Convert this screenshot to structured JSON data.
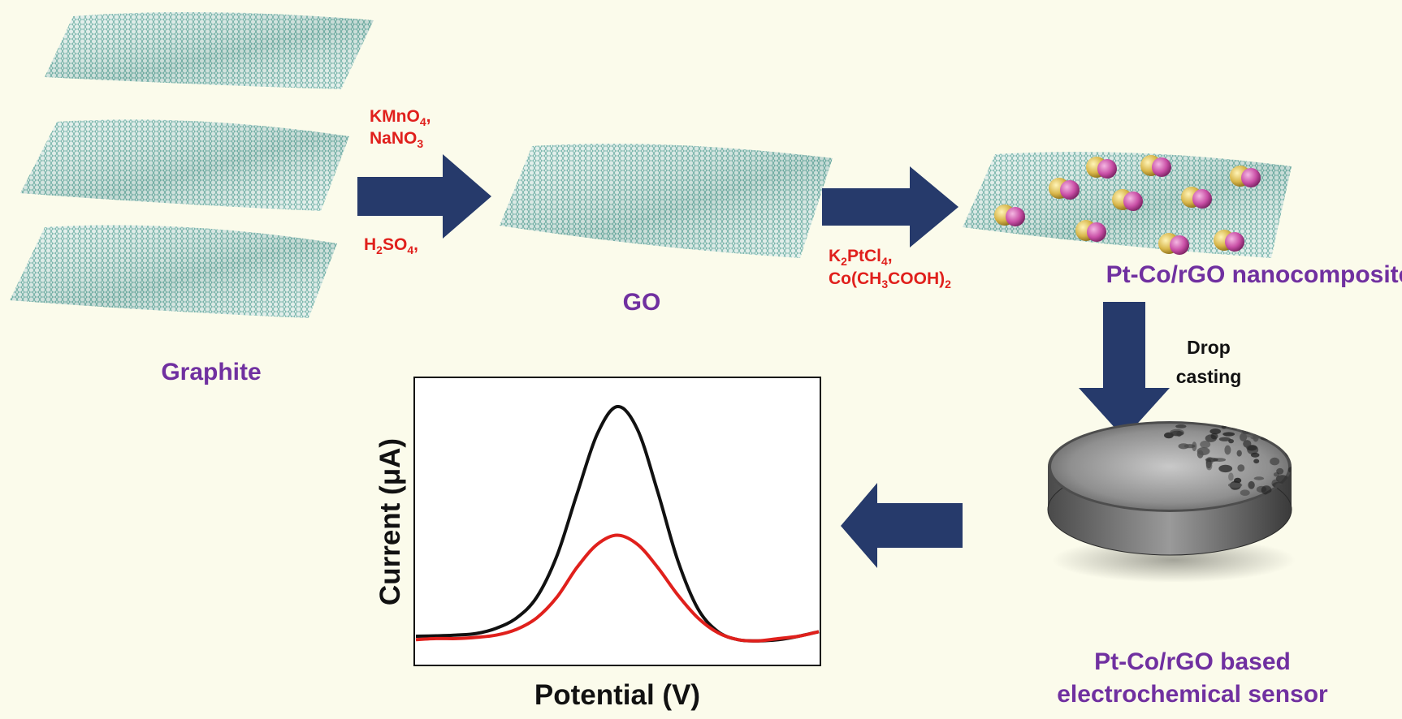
{
  "labels": {
    "graphite": "Graphite",
    "go": "GO",
    "nanocomposite": "Pt-Co/rGO nanocomposite",
    "drop_casting_line1": "Drop",
    "drop_casting_line2": "casting",
    "sensor_line1": "Pt-Co/rGO based",
    "sensor_line2": "electrochemical sensor"
  },
  "reagents_step1": {
    "top_line1": "KMnO4,",
    "top_line2": "NaNO3",
    "bottom": "H2SO4,"
  },
  "reagents_step2": {
    "line1": "K2PtCl4,",
    "line2": "Co(CH3COOH)2"
  },
  "colors": {
    "label": "#7030a0",
    "reagent": "#e0201c",
    "arrow": "#263a6b",
    "sheet": "#6fb3a8",
    "pt_particle": "#c94fa6",
    "co_particle": "#d8b64a"
  },
  "chart_data": {
    "type": "line",
    "title": "",
    "xlabel": "Potential (V)",
    "ylabel": "Current (μA)",
    "series": [
      {
        "color": "#111111",
        "x": [
          0.0,
          0.05,
          0.1,
          0.15,
          0.2,
          0.25,
          0.3,
          0.35,
          0.4,
          0.45,
          0.5,
          0.55,
          0.6,
          0.65,
          0.7,
          0.75,
          0.8,
          0.85,
          0.9,
          0.95,
          1.0
        ],
        "values": [
          0.0,
          0.2,
          0.5,
          1.2,
          3.5,
          8.0,
          17.0,
          35.0,
          62.0,
          88.0,
          100.0,
          90.0,
          63.0,
          33.0,
          12.0,
          2.0,
          -1.5,
          -2.0,
          -1.5,
          0.0,
          2.0
        ]
      },
      {
        "color": "#e0201c",
        "x": [
          0.0,
          0.05,
          0.1,
          0.15,
          0.2,
          0.25,
          0.3,
          0.35,
          0.4,
          0.45,
          0.5,
          0.55,
          0.6,
          0.65,
          0.7,
          0.75,
          0.8,
          0.85,
          0.9,
          0.95,
          1.0
        ],
        "values": [
          -1.5,
          -1.0,
          -1.0,
          -0.5,
          0.5,
          3.0,
          8.0,
          17.0,
          30.0,
          40.0,
          44.0,
          40.0,
          30.0,
          18.0,
          8.0,
          1.5,
          -1.5,
          -2.0,
          -1.0,
          0.0,
          2.0
        ]
      }
    ],
    "xlim": [
      0,
      1
    ],
    "ylim": [
      -12,
      112
    ],
    "ticks": false,
    "grid": false,
    "legend": "none"
  }
}
